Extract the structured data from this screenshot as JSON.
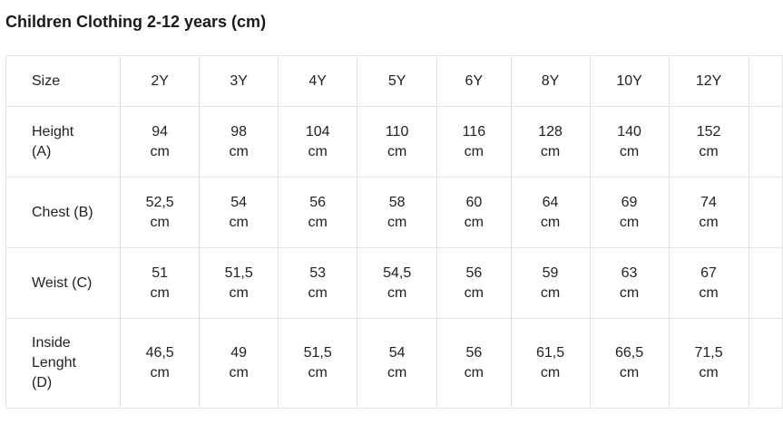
{
  "title": "Children Clothing 2-12 years (cm)",
  "table": {
    "header": {
      "label": "Size",
      "sizes": [
        "2Y",
        "3Y",
        "4Y",
        "5Y",
        "6Y",
        "8Y",
        "10Y",
        "12Y"
      ]
    },
    "rows": [
      {
        "label": "Height (A)",
        "values": [
          "94 cm",
          "98 cm",
          "104 cm",
          "110 cm",
          "116 cm",
          "128 cm",
          "140 cm",
          "152 cm"
        ]
      },
      {
        "label": "Chest (B)",
        "values": [
          "52,5 cm",
          "54 cm",
          "56 cm",
          "58 cm",
          "60 cm",
          "64 cm",
          "69 cm",
          "74 cm"
        ]
      },
      {
        "label": "Weist (C)",
        "values": [
          "51 cm",
          "51,5 cm",
          "53 cm",
          "54,5 cm",
          "56 cm",
          "59 cm",
          "63 cm",
          "67 cm"
        ]
      },
      {
        "label": "Inside Lenght (D)",
        "values": [
          "46,5 cm",
          "49 cm",
          "51,5 cm",
          "54 cm",
          "56 cm",
          "61,5 cm",
          "66,5 cm",
          "71,5 cm"
        ]
      }
    ]
  }
}
